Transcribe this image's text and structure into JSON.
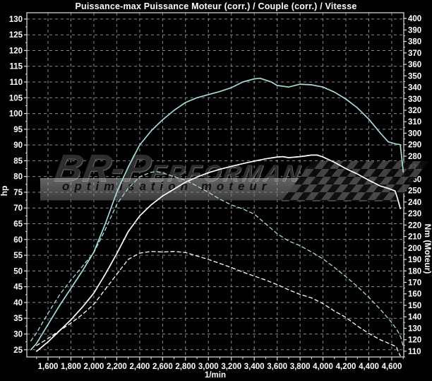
{
  "title": "Puissance-max Puissance Moteur (corr.) / Couple (corr.) / Vitesse",
  "watermark": {
    "brand_left": "BR-P",
    "brand_right": "erformance",
    "tagline": "optimisation moteur"
  },
  "colors": {
    "background": "#000000",
    "grid": "#8a8a8a",
    "frame": "#e2e2e2",
    "text": "#ffffff",
    "cyan": "#a6dadd",
    "white": "#ffffff"
  },
  "axes": {
    "x": {
      "label": "1/min",
      "major_ticks": [
        {
          "v": 1600,
          "label": "1,600"
        },
        {
          "v": 1800,
          "label": "1,800"
        },
        {
          "v": 2000,
          "label": "2,000"
        },
        {
          "v": 2200,
          "label": "2,200"
        },
        {
          "v": 2400,
          "label": "2,400"
        },
        {
          "v": 2600,
          "label": "2,600"
        },
        {
          "v": 2800,
          "label": "2,800"
        },
        {
          "v": 3000,
          "label": "3,000"
        },
        {
          "v": 3200,
          "label": "3,200"
        },
        {
          "v": 3400,
          "label": "3,400"
        },
        {
          "v": 3600,
          "label": "3,600"
        },
        {
          "v": 3800,
          "label": "3,800"
        },
        {
          "v": 4000,
          "label": "4,000"
        },
        {
          "v": 4200,
          "label": "4,200"
        },
        {
          "v": 4400,
          "label": "4,400"
        },
        {
          "v": 4600,
          "label": "4,600"
        }
      ],
      "minor_step": 100
    },
    "left": {
      "label": "hp",
      "ticks": [
        25,
        30,
        35,
        40,
        45,
        50,
        55,
        60,
        65,
        70,
        75,
        80,
        85,
        90,
        95,
        100,
        105,
        110,
        115,
        120,
        125,
        130
      ],
      "minor_step": 2.5
    },
    "right": {
      "label": "Nm (Moteur)",
      "ticks": [
        110,
        120,
        130,
        140,
        150,
        160,
        170,
        180,
        190,
        200,
        210,
        220,
        230,
        240,
        250,
        260,
        270,
        280,
        290,
        300,
        310,
        320,
        330,
        340,
        350,
        360,
        370,
        380,
        390,
        400
      ],
      "minor_step": 5
    }
  },
  "chart_data": {
    "type": "line",
    "title": "Puissance-max Puissance Moteur (corr.) / Couple (corr.) / Vitesse",
    "xlabel": "1/min",
    "ylabel_left": "hp",
    "ylabel_right": "Nm (Moteur)",
    "x_range": [
      1415,
      4705
    ],
    "y_left_range": [
      22.7,
      132
    ],
    "y_right_range": [
      105,
      405
    ],
    "grid": true,
    "legend": "none",
    "series": [
      {
        "name": "puissance-moteur-corrigee",
        "axis": "left",
        "unit": "hp",
        "color": "cyan",
        "style": "solid",
        "points": [
          [
            1450,
            25
          ],
          [
            1500,
            27
          ],
          [
            1600,
            33
          ],
          [
            1700,
            39
          ],
          [
            1800,
            44.5
          ],
          [
            1900,
            50
          ],
          [
            2000,
            56
          ],
          [
            2100,
            65
          ],
          [
            2200,
            75
          ],
          [
            2300,
            83
          ],
          [
            2400,
            90
          ],
          [
            2500,
            94.5
          ],
          [
            2600,
            98
          ],
          [
            2700,
            101
          ],
          [
            2800,
            103.5
          ],
          [
            2900,
            105
          ],
          [
            3000,
            106
          ],
          [
            3100,
            107
          ],
          [
            3200,
            108.2
          ],
          [
            3300,
            110
          ],
          [
            3400,
            111
          ],
          [
            3450,
            111.2
          ],
          [
            3550,
            110
          ],
          [
            3600,
            108.9
          ],
          [
            3700,
            108.4
          ],
          [
            3800,
            109.3
          ],
          [
            3900,
            109.1
          ],
          [
            4000,
            108.4
          ],
          [
            4100,
            106.8
          ],
          [
            4200,
            104.6
          ],
          [
            4300,
            101.8
          ],
          [
            4400,
            98.2
          ],
          [
            4500,
            93.8
          ],
          [
            4570,
            91
          ],
          [
            4640,
            90.3
          ],
          [
            4675,
            90.1
          ],
          [
            4690,
            85
          ],
          [
            4700,
            81.5
          ]
        ]
      },
      {
        "name": "puissance-moteur-origine",
        "axis": "left",
        "unit": "hp",
        "color": "white",
        "style": "solid",
        "points": [
          [
            1500,
            24.5
          ],
          [
            1600,
            27.5
          ],
          [
            1700,
            31
          ],
          [
            1800,
            34.5
          ],
          [
            1900,
            38.5
          ],
          [
            2000,
            43
          ],
          [
            2100,
            49
          ],
          [
            2200,
            55.5
          ],
          [
            2300,
            62.5
          ],
          [
            2400,
            67.5
          ],
          [
            2500,
            71
          ],
          [
            2600,
            73.8
          ],
          [
            2700,
            76
          ],
          [
            2800,
            78.2
          ],
          [
            2900,
            79.8
          ],
          [
            3000,
            81.2
          ],
          [
            3100,
            82.3
          ],
          [
            3200,
            83.2
          ],
          [
            3300,
            84.1
          ],
          [
            3400,
            84.9
          ],
          [
            3500,
            85.6
          ],
          [
            3600,
            86.2
          ],
          [
            3650,
            86.3
          ],
          [
            3700,
            86
          ],
          [
            3800,
            86.3
          ],
          [
            3900,
            86.8
          ],
          [
            3950,
            86.8
          ],
          [
            4000,
            86.2
          ],
          [
            4100,
            84.5
          ],
          [
            4200,
            82.5
          ],
          [
            4300,
            80.8
          ],
          [
            4400,
            78.8
          ],
          [
            4500,
            77
          ],
          [
            4570,
            76.2
          ],
          [
            4630,
            75.4
          ],
          [
            4655,
            72.5
          ],
          [
            4675,
            69.8
          ]
        ]
      },
      {
        "name": "couple-corrige",
        "axis": "right",
        "unit": "Nm",
        "color": "cyan",
        "style": "dashed",
        "points": [
          [
            1450,
            119
          ],
          [
            1500,
            126
          ],
          [
            1600,
            143
          ],
          [
            1700,
            159
          ],
          [
            1800,
            172
          ],
          [
            1900,
            184
          ],
          [
            2000,
            196
          ],
          [
            2100,
            216
          ],
          [
            2200,
            238
          ],
          [
            2300,
            252
          ],
          [
            2400,
            262
          ],
          [
            2500,
            266
          ],
          [
            2550,
            266.5
          ],
          [
            2600,
            265.5
          ],
          [
            2700,
            262
          ],
          [
            2800,
            259
          ],
          [
            2900,
            254
          ],
          [
            3000,
            248.5
          ],
          [
            3100,
            242.5
          ],
          [
            3200,
            237.5
          ],
          [
            3300,
            234
          ],
          [
            3400,
            229.5
          ],
          [
            3500,
            221
          ],
          [
            3600,
            212.5
          ],
          [
            3700,
            206
          ],
          [
            3800,
            202
          ],
          [
            3900,
            196.5
          ],
          [
            4000,
            190.5
          ],
          [
            4100,
            183
          ],
          [
            4200,
            175
          ],
          [
            4300,
            166.5
          ],
          [
            4400,
            157
          ],
          [
            4500,
            146.5
          ],
          [
            4600,
            135
          ],
          [
            4650,
            128
          ],
          [
            4680,
            122
          ],
          [
            4700,
            114
          ]
        ]
      },
      {
        "name": "couple-origine",
        "axis": "right",
        "unit": "Nm",
        "color": "white",
        "style": "dashed",
        "points": [
          [
            1500,
            115
          ],
          [
            1600,
            121
          ],
          [
            1700,
            128
          ],
          [
            1800,
            134.5
          ],
          [
            1900,
            142
          ],
          [
            2000,
            151
          ],
          [
            2100,
            164
          ],
          [
            2200,
            177
          ],
          [
            2300,
            190
          ],
          [
            2400,
            195.5
          ],
          [
            2500,
            197
          ],
          [
            2600,
            196.5
          ],
          [
            2700,
            197
          ],
          [
            2800,
            196
          ],
          [
            2900,
            193
          ],
          [
            3000,
            190
          ],
          [
            3100,
            186.5
          ],
          [
            3200,
            183
          ],
          [
            3300,
            179
          ],
          [
            3400,
            175.5
          ],
          [
            3500,
            172
          ],
          [
            3600,
            168
          ],
          [
            3700,
            163.5
          ],
          [
            3800,
            159.5
          ],
          [
            3900,
            156.5
          ],
          [
            4000,
            151.5
          ],
          [
            4100,
            145
          ],
          [
            4200,
            139.5
          ],
          [
            4300,
            132
          ],
          [
            4400,
            125.5
          ],
          [
            4500,
            120
          ],
          [
            4570,
            117
          ],
          [
            4640,
            114
          ],
          [
            4660,
            109
          ],
          [
            4675,
            106
          ]
        ]
      }
    ]
  }
}
